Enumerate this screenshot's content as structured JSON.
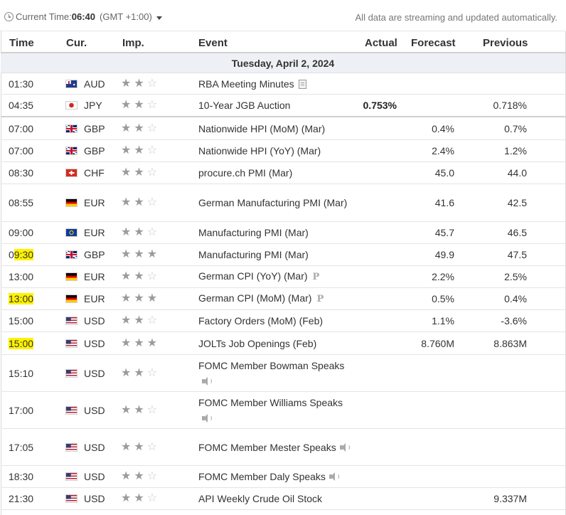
{
  "topbar": {
    "time_label": "Current Time:",
    "time_value": "06:40",
    "timezone": "(GMT +1:00)",
    "stream_note": "All data are streaming and updated automatically."
  },
  "columns": {
    "time": "Time",
    "currency": "Cur.",
    "importance": "Imp.",
    "event": "Event",
    "actual": "Actual",
    "forecast": "Forecast",
    "previous": "Previous"
  },
  "day_header": "Tuesday, April 2, 2024",
  "rows": [
    {
      "time": "01:30",
      "cur": "AUD",
      "stars": 2,
      "event": "RBA Meeting Minutes",
      "event_icon": "document-icon",
      "actual": "",
      "forecast": "",
      "previous": ""
    },
    {
      "time": "04:35",
      "cur": "JPY",
      "stars": 2,
      "event": "10-Year JGB Auction",
      "actual": "0.753%",
      "forecast": "",
      "previous": "0.718%"
    },
    {
      "time": "07:00",
      "cur": "GBP",
      "stars": 2,
      "event": "Nationwide HPI (MoM) (Mar)",
      "actual": "",
      "forecast": "0.4%",
      "previous": "0.7%"
    },
    {
      "time": "07:00",
      "cur": "GBP",
      "stars": 2,
      "event": "Nationwide HPI (YoY) (Mar)",
      "actual": "",
      "forecast": "2.4%",
      "previous": "1.2%"
    },
    {
      "time": "08:30",
      "cur": "CHF",
      "stars": 2,
      "event": "procure.ch PMI (Mar)",
      "actual": "",
      "forecast": "45.0",
      "previous": "44.0"
    },
    {
      "time": "08:55",
      "cur": "EUR",
      "stars": 2,
      "event": "German Manufacturing PMI (Mar)",
      "actual": "",
      "forecast": "41.6",
      "previous": "42.5"
    },
    {
      "time": "09:00",
      "cur": "EUR",
      "stars": 2,
      "event": "Manufacturing PMI (Mar)",
      "actual": "",
      "forecast": "45.7",
      "previous": "46.5"
    },
    {
      "time": "09:30",
      "time_highlight": "partial",
      "cur": "GBP",
      "stars": 3,
      "event": "Manufacturing PMI (Mar)",
      "actual": "",
      "forecast": "49.9",
      "previous": "47.5"
    },
    {
      "time": "13:00",
      "cur": "EUR",
      "stars": 2,
      "event": "German CPI (YoY) (Mar)",
      "event_icon": "preliminary-icon",
      "actual": "",
      "forecast": "2.2%",
      "previous": "2.5%"
    },
    {
      "time": "13:00",
      "time_highlight": "full",
      "cur": "EUR",
      "stars": 3,
      "event": "German CPI (MoM) (Mar)",
      "event_icon": "preliminary-icon",
      "actual": "",
      "forecast": "0.5%",
      "previous": "0.4%"
    },
    {
      "time": "15:00",
      "cur": "USD",
      "stars": 2,
      "event": "Factory Orders (MoM) (Feb)",
      "actual": "",
      "forecast": "1.1%",
      "previous": "-3.6%"
    },
    {
      "time": "15:00",
      "time_highlight": "full",
      "cur": "USD",
      "stars": 3,
      "event": "JOLTs Job Openings (Feb)",
      "actual": "",
      "forecast": "8.760M",
      "previous": "8.863M"
    },
    {
      "time": "15:10",
      "cur": "USD",
      "stars": 2,
      "event": "FOMC Member Bowman Speaks",
      "event_icon": "speaker-icon",
      "actual": "",
      "forecast": "",
      "previous": ""
    },
    {
      "time": "17:00",
      "cur": "USD",
      "stars": 2,
      "event": "FOMC Member Williams Speaks",
      "event_icon": "speaker-icon",
      "actual": "",
      "forecast": "",
      "previous": ""
    },
    {
      "time": "17:05",
      "cur": "USD",
      "stars": 2,
      "event": "FOMC Member Mester Speaks",
      "event_icon": "speaker-icon",
      "actual": "",
      "forecast": "",
      "previous": ""
    },
    {
      "time": "18:30",
      "cur": "USD",
      "stars": 2,
      "event": "FOMC Member Daly Speaks",
      "event_icon": "speaker-icon",
      "actual": "",
      "forecast": "",
      "previous": ""
    },
    {
      "time": "21:30",
      "cur": "USD",
      "stars": 2,
      "event": "API Weekly Crude Oil Stock",
      "actual": "",
      "forecast": "",
      "previous": "9.337M"
    }
  ],
  "colors": {
    "highlight": "#fff200",
    "day_header_bg": "#eef0f5",
    "star_full": "#9b9b9b",
    "star_empty": "#c8c8c8"
  }
}
